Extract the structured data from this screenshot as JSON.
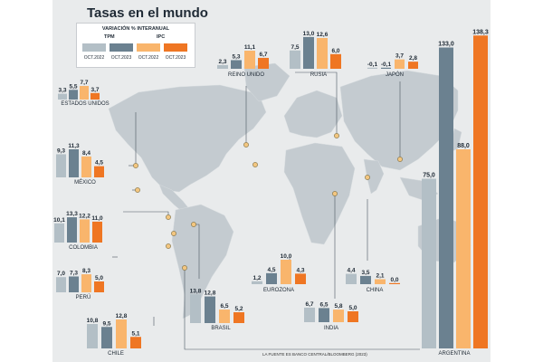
{
  "title": "Tasas en el mundo",
  "source": "LA FUENTE ES BANCO CENTRAL/BLOOMBERG (2023)",
  "legend": {
    "heading": "VARIACIÓN % INTERANUAL",
    "group_tpm": "TPM",
    "group_ipc": "IPC",
    "items": [
      "OCT.2022",
      "OCT.2023",
      "OCT.2022",
      "OCT.2023"
    ]
  },
  "colors": {
    "tpm_2022": "#b3bfc6",
    "tpm_2023": "#6b8190",
    "ipc_2022": "#f9b56c",
    "ipc_2023": "#ef7623"
  },
  "chart_data": {
    "type": "bar",
    "title": "Tasas en el mundo",
    "series": [
      {
        "name": "TPM Oct.2022"
      },
      {
        "name": "TPM Oct.2023"
      },
      {
        "name": "IPC Oct.2022"
      },
      {
        "name": "IPC Oct.2023"
      }
    ],
    "countries": [
      {
        "name": "ESTADOS UNIDOS",
        "values": [
          3.3,
          5.5,
          7.7,
          3.7
        ],
        "labels": [
          "3,3",
          "5,5",
          "7,7",
          "3,7"
        ]
      },
      {
        "name": "MÉXICO",
        "values": [
          9.3,
          11.3,
          8.4,
          4.5
        ],
        "labels": [
          "9,3",
          "11,3",
          "8,4",
          "4,5"
        ]
      },
      {
        "name": "COLOMBIA",
        "values": [
          10.1,
          13.3,
          12.2,
          11.0
        ],
        "labels": [
          "10,1",
          "13,3",
          "12,2",
          "11,0"
        ]
      },
      {
        "name": "PERÚ",
        "values": [
          7.0,
          7.3,
          8.3,
          5.0
        ],
        "labels": [
          "7,0",
          "7,3",
          "8,3",
          "5,0"
        ]
      },
      {
        "name": "CHILE",
        "values": [
          10.8,
          9.5,
          12.8,
          5.1
        ],
        "labels": [
          "10,8",
          "9,5",
          "12,8",
          "5,1"
        ]
      },
      {
        "name": "BRASIL",
        "values": [
          13.8,
          12.8,
          6.5,
          5.2
        ],
        "labels": [
          "13,8",
          "12,8",
          "6,5",
          "5,2"
        ]
      },
      {
        "name": "REINO UNIDO",
        "values": [
          2.3,
          5.3,
          11.1,
          6.7
        ],
        "labels": [
          "2,3",
          "5,3",
          "11,1",
          "6,7"
        ]
      },
      {
        "name": "RUSIA",
        "values": [
          7.5,
          13.0,
          12.6,
          6.0
        ],
        "labels": [
          "7,5",
          "13,0",
          "12,6",
          "6,0"
        ]
      },
      {
        "name": "JAPÓN",
        "values": [
          -0.1,
          -0.1,
          3.7,
          2.8
        ],
        "labels": [
          "-0,1",
          "-0,1",
          "3,7",
          "2,8"
        ]
      },
      {
        "name": "EUROZONA",
        "values": [
          1.2,
          4.5,
          10.0,
          4.3
        ],
        "labels": [
          "1,2",
          "4,5",
          "10,0",
          "4,3"
        ]
      },
      {
        "name": "CHINA",
        "values": [
          4.4,
          3.5,
          2.1,
          0.0
        ],
        "labels": [
          "4,4",
          "3,5",
          "2,1",
          "0,0"
        ]
      },
      {
        "name": "INDIA",
        "values": [
          6.7,
          6.5,
          5.8,
          5.0
        ],
        "labels": [
          "6,7",
          "6,5",
          "5,8",
          "5,0"
        ]
      },
      {
        "name": "ARGENTINA",
        "values": [
          75.0,
          133.0,
          88.0,
          138.3
        ],
        "labels": [
          "75,0",
          "133,0",
          "88,0",
          "138,3"
        ]
      }
    ]
  }
}
